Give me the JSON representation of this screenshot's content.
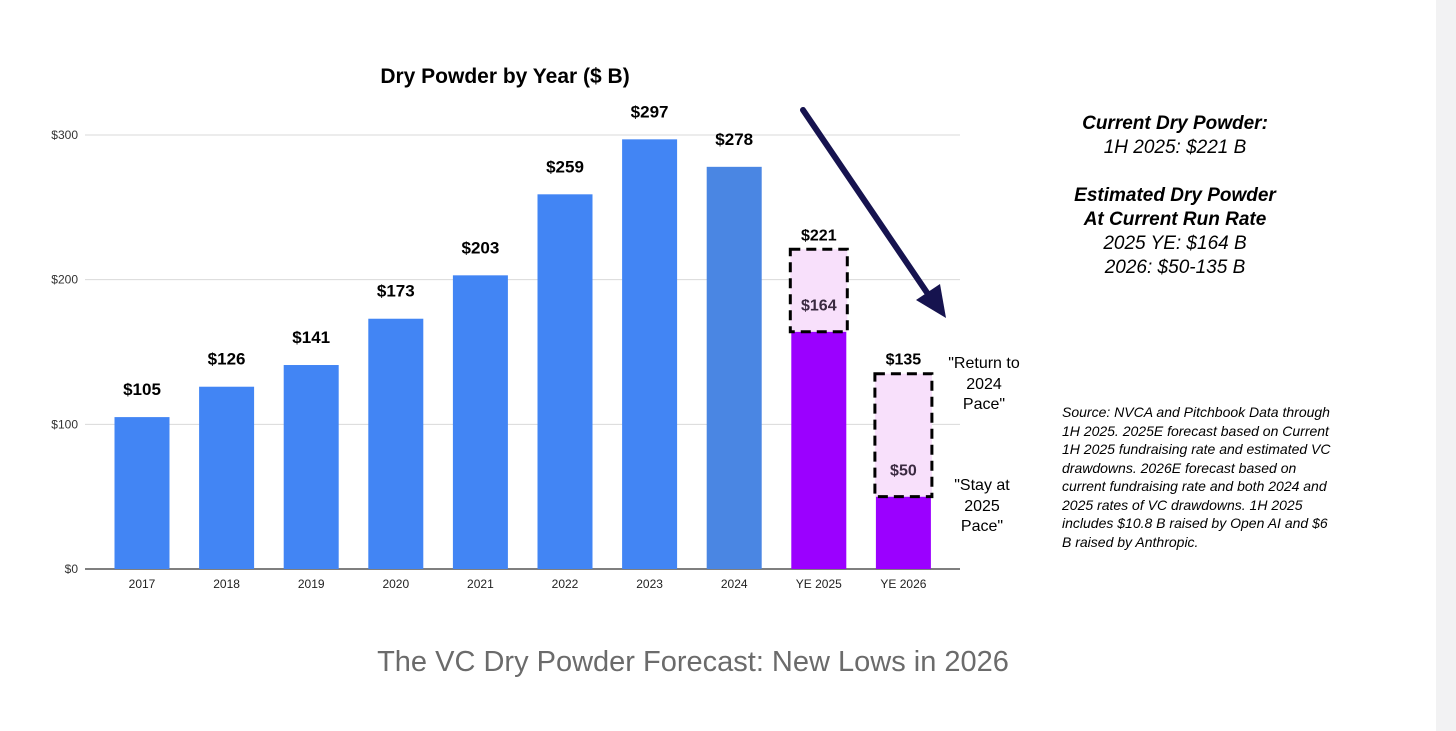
{
  "chart_data": {
    "type": "bar",
    "title": "Dry Powder by Year ($ B)",
    "categories": [
      "2017",
      "2018",
      "2019",
      "2020",
      "2021",
      "2022",
      "2023",
      "2024",
      "YE 2025",
      "YE 2026"
    ],
    "values": [
      105,
      126,
      141,
      173,
      203,
      259,
      297,
      278,
      164,
      50
    ],
    "value_labels": [
      "$105",
      "$126",
      "$141",
      "$173",
      "$203",
      "$259",
      "$297",
      "$278",
      "$164",
      "$50"
    ],
    "forecast_upper": [
      null,
      null,
      null,
      null,
      null,
      null,
      null,
      null,
      221,
      135
    ],
    "forecast_upper_labels": [
      null,
      null,
      null,
      null,
      null,
      null,
      null,
      null,
      "$221",
      "$135"
    ],
    "yticks": [
      0,
      100,
      200,
      300
    ],
    "ytick_labels": [
      "$0",
      "$100",
      "$200",
      "$300"
    ],
    "ylim": [
      0,
      300
    ],
    "xlabel": "",
    "ylabel": "",
    "grid": true,
    "colors": {
      "actual": "#4285f4",
      "actual_2024": "#4a86e3",
      "forecast": "#9b00ff",
      "forecast_range_fill": "#f8e0fb",
      "forecast_range_border": "#000000",
      "arrow": "#16134f",
      "grid": "#d9d9d9"
    }
  },
  "annotations": {
    "return_pace": [
      "\"Return to",
      "2024",
      "Pace\""
    ],
    "stay_pace": [
      "\"Stay at",
      "2025",
      "Pace\""
    ]
  },
  "info": {
    "current_heading": "Current Dry Powder:",
    "current_value": "1H 2025: $221 B",
    "estimated_heading_1": "Estimated Dry Powder",
    "estimated_heading_2": "At Current Run Rate",
    "estimated_2025": "2025 YE: $164 B",
    "estimated_2026": "2026: $50-135 B"
  },
  "source_note": "Source: NVCA and Pitchbook Data through 1H 2025. 2025E forecast based on Current 1H 2025 fundraising rate and estimated VC drawdowns. 2026E forecast based on current fundraising rate and both 2024 and 2025 rates of VC drawdowns. 1H 2025 includes $10.8 B raised by Open AI and $6 B raised by Anthropic.",
  "caption": "The VC Dry Powder Forecast: New Lows in 2026"
}
